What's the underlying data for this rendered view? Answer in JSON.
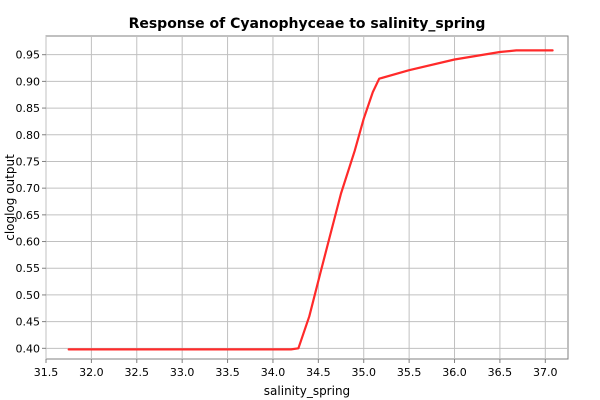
{
  "chart_data": {
    "type": "line",
    "title": "Response of Cyanophyceae to salinity_spring",
    "xlabel": "salinity_spring",
    "ylabel": "cloglog output",
    "xlim": [
      31.5,
      37.25
    ],
    "ylim": [
      0.38,
      0.985
    ],
    "grid": true,
    "x_ticks": [
      31.5,
      32.0,
      32.5,
      33.0,
      33.5,
      34.0,
      34.5,
      35.0,
      35.5,
      36.0,
      36.5,
      37.0
    ],
    "x_tick_labels": [
      "31.5",
      "32.0",
      "32.5",
      "33.0",
      "33.5",
      "34.0",
      "34.5",
      "35.0",
      "35.5",
      "36.0",
      "36.5",
      "37.0"
    ],
    "y_ticks": [
      0.4,
      0.45,
      0.5,
      0.55,
      0.6,
      0.65,
      0.7,
      0.75,
      0.8,
      0.85,
      0.9,
      0.95
    ],
    "y_tick_labels": [
      "0.40",
      "0.45",
      "0.50",
      "0.55",
      "0.60",
      "0.65",
      "0.70",
      "0.75",
      "0.80",
      "0.85",
      "0.90",
      "0.95"
    ],
    "series": [
      {
        "color": "#ff2a2a",
        "x": [
          31.75,
          34.2,
          34.28,
          34.4,
          34.52,
          34.62,
          34.75,
          34.9,
          35.0,
          35.1,
          35.17,
          35.5,
          36.0,
          36.5,
          36.68,
          37.08
        ],
        "y": [
          0.398,
          0.398,
          0.4,
          0.46,
          0.54,
          0.605,
          0.69,
          0.77,
          0.83,
          0.88,
          0.905,
          0.921,
          0.941,
          0.955,
          0.958,
          0.958
        ]
      }
    ]
  }
}
